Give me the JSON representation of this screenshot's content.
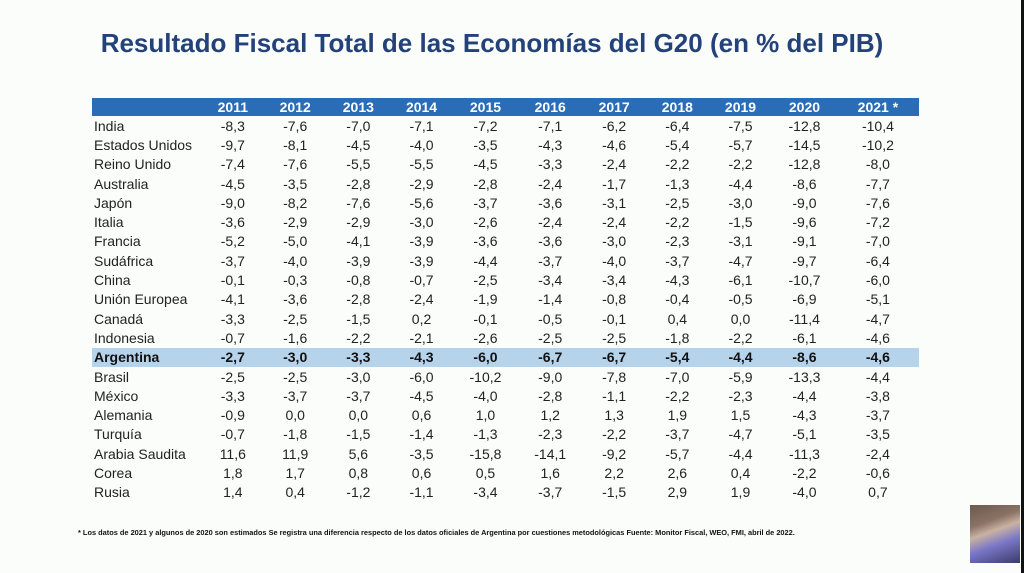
{
  "title": "Resultado Fiscal Total de las Economías del G20 (en % del PIB)",
  "table": {
    "headers": [
      "2011",
      "2012",
      "2013",
      "2014",
      "2015",
      "2016",
      "2017",
      "2018",
      "2019",
      "2020",
      "2021 *"
    ],
    "highlight_row": "Argentina",
    "rows": [
      {
        "country": "India",
        "values": [
          "-8,3",
          "-7,6",
          "-7,0",
          "-7,1",
          "-7,2",
          "-7,1",
          "-6,2",
          "-6,4",
          "-7,5",
          "-12,8",
          "-10,4"
        ]
      },
      {
        "country": "Estados Unidos",
        "values": [
          "-9,7",
          "-8,1",
          "-4,5",
          "-4,0",
          "-3,5",
          "-4,3",
          "-4,6",
          "-5,4",
          "-5,7",
          "-14,5",
          "-10,2"
        ]
      },
      {
        "country": "Reino Unido",
        "values": [
          "-7,4",
          "-7,6",
          "-5,5",
          "-5,5",
          "-4,5",
          "-3,3",
          "-2,4",
          "-2,2",
          "-2,2",
          "-12,8",
          "-8,0"
        ]
      },
      {
        "country": "Australia",
        "values": [
          "-4,5",
          "-3,5",
          "-2,8",
          "-2,9",
          "-2,8",
          "-2,4",
          "-1,7",
          "-1,3",
          "-4,4",
          "-8,6",
          "-7,7"
        ]
      },
      {
        "country": "Japón",
        "values": [
          "-9,0",
          "-8,2",
          "-7,6",
          "-5,6",
          "-3,7",
          "-3,6",
          "-3,1",
          "-2,5",
          "-3,0",
          "-9,0",
          "-7,6"
        ]
      },
      {
        "country": "Italia",
        "values": [
          "-3,6",
          "-2,9",
          "-2,9",
          "-3,0",
          "-2,6",
          "-2,4",
          "-2,4",
          "-2,2",
          "-1,5",
          "-9,6",
          "-7,2"
        ]
      },
      {
        "country": "Francia",
        "values": [
          "-5,2",
          "-5,0",
          "-4,1",
          "-3,9",
          "-3,6",
          "-3,6",
          "-3,0",
          "-2,3",
          "-3,1",
          "-9,1",
          "-7,0"
        ]
      },
      {
        "country": "Sudáfrica",
        "values": [
          "-3,7",
          "-4,0",
          "-3,9",
          "-3,9",
          "-4,4",
          "-3,7",
          "-4,0",
          "-3,7",
          "-4,7",
          "-9,7",
          "-6,4"
        ]
      },
      {
        "country": "China",
        "values": [
          "-0,1",
          "-0,3",
          "-0,8",
          "-0,7",
          "-2,5",
          "-3,4",
          "-3,4",
          "-4,3",
          "-6,1",
          "-10,7",
          "-6,0"
        ]
      },
      {
        "country": "Unión Europea",
        "values": [
          "-4,1",
          "-3,6",
          "-2,8",
          "-2,4",
          "-1,9",
          "-1,4",
          "-0,8",
          "-0,4",
          "-0,5",
          "-6,9",
          "-5,1"
        ]
      },
      {
        "country": "Canadá",
        "values": [
          "-3,3",
          "-2,5",
          "-1,5",
          "0,2",
          "-0,1",
          "-0,5",
          "-0,1",
          "0,4",
          "0,0",
          "-11,4",
          "-4,7"
        ]
      },
      {
        "country": "Indonesia",
        "values": [
          "-0,7",
          "-1,6",
          "-2,2",
          "-2,1",
          "-2,6",
          "-2,5",
          "-2,5",
          "-1,8",
          "-2,2",
          "-6,1",
          "-4,6"
        ]
      },
      {
        "country": "Argentina",
        "values": [
          "-2,7",
          "-3,0",
          "-3,3",
          "-4,3",
          "-6,0",
          "-6,7",
          "-6,7",
          "-5,4",
          "-4,4",
          "-8,6",
          "-4,6"
        ]
      },
      {
        "country": "Brasil",
        "values": [
          "-2,5",
          "-2,5",
          "-3,0",
          "-6,0",
          "-10,2",
          "-9,0",
          "-7,8",
          "-7,0",
          "-5,9",
          "-13,3",
          "-4,4"
        ]
      },
      {
        "country": "México",
        "values": [
          "-3,3",
          "-3,7",
          "-3,7",
          "-4,5",
          "-4,0",
          "-2,8",
          "-1,1",
          "-2,2",
          "-2,3",
          "-4,4",
          "-3,8"
        ]
      },
      {
        "country": "Alemania",
        "values": [
          "-0,9",
          "0,0",
          "0,0",
          "0,6",
          "1,0",
          "1,2",
          "1,3",
          "1,9",
          "1,5",
          "-4,3",
          "-3,7"
        ]
      },
      {
        "country": "Turquía",
        "values": [
          "-0,7",
          "-1,8",
          "-1,5",
          "-1,4",
          "-1,3",
          "-2,3",
          "-2,2",
          "-3,7",
          "-4,7",
          "-5,1",
          "-3,5"
        ]
      },
      {
        "country": "Arabia Saudita",
        "values": [
          "11,6",
          "11,9",
          "5,6",
          "-3,5",
          "-15,8",
          "-14,1",
          "-9,2",
          "-5,7",
          "-4,4",
          "-11,3",
          "-2,4"
        ]
      },
      {
        "country": "Corea",
        "values": [
          "1,8",
          "1,7",
          "0,8",
          "0,6",
          "0,5",
          "1,6",
          "2,2",
          "2,6",
          "0,4",
          "-2,2",
          "-0,6"
        ]
      },
      {
        "country": "Rusia",
        "values": [
          "1,4",
          "0,4",
          "-1,2",
          "-1,1",
          "-3,4",
          "-3,7",
          "-1,5",
          "2,9",
          "1,9",
          "-4,0",
          "0,7"
        ]
      }
    ]
  },
  "footnote": "* Los datos de 2021 y algunos de 2020 son estimados Se registra una diferencia respecto de los datos oficiales de Argentina por cuestiones metodológicas Fuente: Monitor Fiscal, WEO, FMI, abril de 2022.",
  "colors": {
    "title": "#24427a",
    "header_bg": "#2a6cb5",
    "highlight_bg": "#b6d3ec"
  }
}
